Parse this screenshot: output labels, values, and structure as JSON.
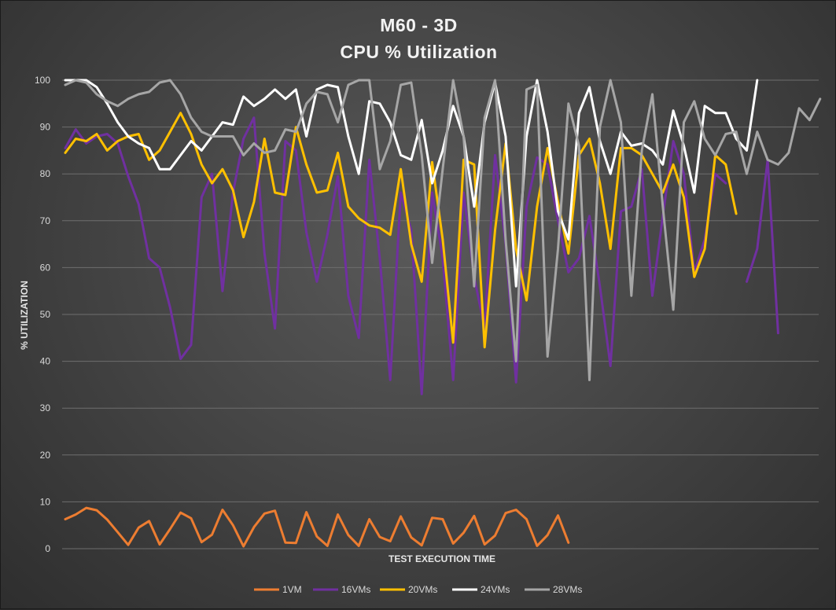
{
  "title_line1": "M60 - 3D",
  "title_line2": "CPU % Utilization",
  "chart_data": {
    "type": "line",
    "title": "M60 - 3D CPU % Utilization",
    "xlabel": "TEST EXECUTION TIME",
    "ylabel": "% UTILIZATION",
    "ylim": [
      0,
      100
    ],
    "yticks": [
      0,
      10,
      20,
      30,
      40,
      50,
      60,
      70,
      80,
      90,
      100
    ],
    "grid": true,
    "legend_position": "bottom",
    "series": [
      {
        "name": "1VM",
        "color": "#ed7d31",
        "values": [
          6.3,
          7.3,
          8.7,
          8.2,
          6.2,
          3.5,
          0.8,
          4.5,
          5.9,
          0.9,
          4.2,
          7.7,
          6.5,
          1.4,
          3.0,
          8.3,
          5.0,
          0.5,
          4.6,
          7.5,
          8.1,
          1.3,
          1.2,
          7.8,
          2.6,
          0.6,
          7.3,
          2.9,
          0.6,
          6.3,
          2.5,
          1.6,
          6.9,
          2.4,
          0.7,
          6.6,
          6.3,
          1.1,
          3.4,
          7.0,
          0.9,
          2.8,
          7.6,
          8.3,
          6.3,
          0.6,
          2.9,
          7.1,
          1.3
        ]
      },
      {
        "name": "16VMs",
        "color": "#7030a0",
        "values": [
          85.5,
          89.5,
          86.5,
          88.0,
          88.5,
          86.5,
          79.5,
          73.5,
          62.0,
          60.0,
          51.5,
          40.5,
          43.5,
          75.0,
          80.0,
          55.0,
          76.0,
          87.5,
          92.0,
          63.0,
          47.0,
          87.0,
          85.0,
          67.5,
          57.0,
          67.0,
          79.5,
          54.0,
          45.0,
          83.0,
          62.0,
          36.0,
          76.0,
          68.0,
          33.0,
          76.0,
          62.0,
          36.0,
          76.0,
          58.0,
          47.0,
          84.0,
          65.0,
          35.5,
          73.0,
          83.5,
          82.0,
          70.0,
          59.0,
          62.0,
          71.0,
          56.0,
          39.0,
          72.0,
          73.0,
          81.0,
          54.0,
          71.0,
          87.0,
          80.0,
          59.0,
          66.0,
          80.0,
          78.0,
          null,
          57.0,
          64.0,
          83.0,
          46.0
        ]
      },
      {
        "name": "20VMs",
        "color": "#ffc000",
        "values": [
          84.5,
          87.5,
          87.0,
          88.5,
          85.0,
          87.0,
          88.0,
          88.5,
          83.0,
          85.0,
          89.0,
          93.0,
          88.5,
          82.0,
          78.0,
          81.0,
          76.5,
          66.5,
          74.0,
          87.5,
          76.0,
          75.5,
          90.0,
          82.0,
          76.0,
          76.5,
          84.5,
          73.0,
          70.5,
          69.0,
          68.5,
          67.0,
          81.0,
          65.0,
          57.0,
          82.5,
          66.0,
          44.0,
          83.0,
          82.0,
          43.0,
          68.0,
          86.5,
          64.0,
          53.0,
          73.0,
          85.5,
          74.0,
          63.0,
          84.0,
          87.5,
          78.0,
          64.0,
          85.5,
          85.5,
          84.0,
          80.0,
          76.0,
          82.0,
          75.0,
          58.0,
          64.0,
          84.0,
          82.0,
          71.5
        ]
      },
      {
        "name": "24VMs",
        "color": "#ffffff",
        "values": [
          100.0,
          100.0,
          100.0,
          98.5,
          95.0,
          91.0,
          88.0,
          86.5,
          85.5,
          81.0,
          81.0,
          84.0,
          87.0,
          85.0,
          88.0,
          91.0,
          90.5,
          96.5,
          94.5,
          96.0,
          98.0,
          96.0,
          98.0,
          88.0,
          98.0,
          99.0,
          98.5,
          88.0,
          80.0,
          95.5,
          95.0,
          91.0,
          84.0,
          83.0,
          91.5,
          78.0,
          85.0,
          94.5,
          88.0,
          73.0,
          91.0,
          99.5,
          88.0,
          56.0,
          88.0,
          100.0,
          89.0,
          72.0,
          66.0,
          93.0,
          98.5,
          87.0,
          80.0,
          89.0,
          86.0,
          86.5,
          85.0,
          82.0,
          93.5,
          86.0,
          76.0,
          94.5,
          93.0,
          93.0,
          87.5,
          85.0,
          100.0
        ]
      },
      {
        "name": "28VMs",
        "color": "#a6a6a6",
        "values": [
          99.0,
          100.0,
          99.5,
          97.0,
          95.5,
          94.5,
          96.0,
          97.0,
          97.5,
          99.5,
          100.0,
          97.0,
          92.0,
          89.0,
          88.0,
          88.0,
          88.0,
          84.0,
          86.5,
          84.5,
          85.0,
          89.5,
          89.0,
          95.0,
          97.5,
          97.0,
          91.0,
          99.0,
          100.0,
          100.0,
          81.0,
          87.0,
          99.0,
          99.5,
          84.0,
          61.0,
          81.0,
          100.0,
          88.0,
          56.0,
          92.0,
          100.0,
          66.0,
          40.0,
          98.0,
          99.0,
          41.0,
          64.0,
          95.0,
          86.0,
          36.0,
          90.0,
          100.0,
          91.0,
          54.0,
          85.0,
          97.0,
          73.0,
          51.0,
          91.0,
          95.5,
          87.5,
          84.0,
          88.5,
          89.0,
          80.0,
          89.0,
          83.0,
          82.0,
          84.5,
          94.0,
          91.5,
          96.0
        ]
      }
    ]
  }
}
